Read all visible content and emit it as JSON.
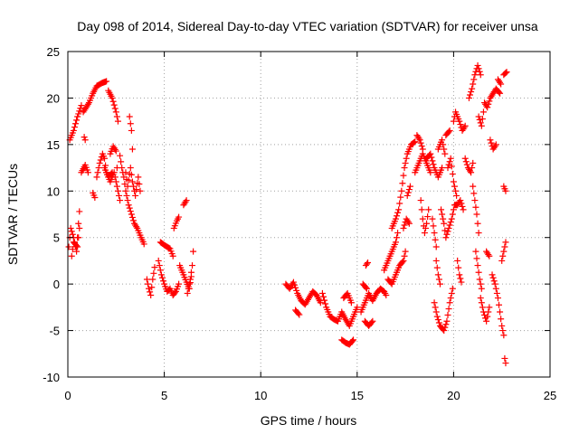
{
  "chart_data": {
    "type": "scatter",
    "title": "Day 098 of 2014, Sidereal Day-to-day VTEC variation (SDTVAR) for receiver unsa",
    "xlabel": "GPS time / hours",
    "ylabel": "SDTVAR / TECUs",
    "xlim": [
      0,
      25
    ],
    "ylim": [
      -10,
      25
    ],
    "xticks": [
      0,
      5,
      10,
      15,
      20,
      25
    ],
    "yticks": [
      -10,
      -5,
      0,
      5,
      10,
      15,
      20,
      25
    ],
    "xtick_labels": [
      "0",
      "5",
      "10",
      "15",
      "20",
      "25"
    ],
    "ytick_labels": [
      "-10",
      "-5",
      "0",
      "5",
      "10",
      "15",
      "20",
      "25"
    ],
    "grid": true,
    "marker": "+",
    "color": "#ff0000",
    "series_name": "SDTVAR",
    "tracks": [
      [
        [
          0.05,
          4.0
        ],
        [
          0.15,
          6.0
        ],
        [
          0.3,
          5.0
        ],
        [
          0.45,
          3.5
        ],
        [
          0.55,
          6.5
        ],
        [
          0.6,
          7.8
        ]
      ],
      [
        [
          0.1,
          15.5
        ],
        [
          0.3,
          16.5
        ],
        [
          0.5,
          18.0
        ],
        [
          0.7,
          19.2
        ]
      ],
      [
        [
          0.85,
          15.8
        ],
        [
          0.9,
          15.5
        ]
      ],
      [
        [
          0.7,
          12.0
        ],
        [
          0.9,
          12.8
        ],
        [
          1.05,
          12.0
        ]
      ],
      [
        [
          0.8,
          18.5
        ],
        [
          1.1,
          19.5
        ],
        [
          1.3,
          20.5
        ],
        [
          1.5,
          21.3
        ],
        [
          1.75,
          21.6
        ],
        [
          2.0,
          21.8
        ]
      ],
      [
        [
          1.3,
          9.8
        ],
        [
          1.4,
          9.3
        ]
      ],
      [
        [
          1.5,
          11.5
        ],
        [
          1.65,
          13.0
        ],
        [
          1.8,
          14.0
        ],
        [
          1.9,
          13.5
        ],
        [
          2.0,
          12.0
        ],
        [
          2.2,
          11.0
        ],
        [
          2.4,
          12.0
        ],
        [
          2.55,
          10.5
        ],
        [
          2.7,
          9.0
        ]
      ],
      [
        [
          2.1,
          20.8
        ],
        [
          2.3,
          20.0
        ],
        [
          2.5,
          18.5
        ],
        [
          2.6,
          17.5
        ]
      ],
      [
        [
          2.2,
          14.0
        ],
        [
          2.35,
          14.8
        ],
        [
          2.5,
          14.3
        ],
        [
          2.55,
          12.5
        ]
      ],
      [
        [
          2.7,
          13.8
        ],
        [
          2.8,
          12.5
        ],
        [
          2.9,
          11.5
        ],
        [
          3.0,
          10.0
        ],
        [
          3.15,
          8.5
        ],
        [
          3.3,
          7.5
        ],
        [
          3.45,
          6.5
        ],
        [
          3.6,
          6.0
        ],
        [
          3.8,
          5.0
        ],
        [
          3.95,
          4.3
        ]
      ],
      [
        [
          3.0,
          12.0
        ],
        [
          3.1,
          10.5
        ],
        [
          3.25,
          12.5
        ],
        [
          3.35,
          11.0
        ],
        [
          3.5,
          9.5
        ],
        [
          3.65,
          11.5
        ],
        [
          3.75,
          10.0
        ]
      ],
      [
        [
          3.2,
          18.0
        ],
        [
          3.3,
          16.5
        ],
        [
          3.35,
          14.5
        ]
      ],
      [
        [
          4.1,
          0.5
        ],
        [
          4.2,
          -0.5
        ],
        [
          4.3,
          -1.2
        ],
        [
          4.4,
          0.5
        ],
        [
          4.5,
          1.8
        ]
      ],
      [
        [
          4.7,
          2.5
        ],
        [
          4.85,
          1.0
        ],
        [
          5.0,
          0.0
        ],
        [
          5.15,
          -0.8
        ],
        [
          5.3,
          -0.5
        ],
        [
          5.45,
          -1.2
        ],
        [
          5.6,
          -0.8
        ],
        [
          5.75,
          0.0
        ]
      ],
      [
        [
          4.8,
          4.5
        ],
        [
          5.0,
          4.2
        ],
        [
          5.15,
          4.0
        ],
        [
          5.3,
          3.8
        ],
        [
          5.45,
          3.0
        ]
      ],
      [
        [
          5.5,
          6.0
        ],
        [
          5.65,
          6.8
        ],
        [
          5.75,
          7.2
        ]
      ],
      [
        [
          5.8,
          2.0
        ],
        [
          6.0,
          1.0
        ],
        [
          6.15,
          0.2
        ],
        [
          6.3,
          -0.5
        ],
        [
          6.4,
          0.8
        ]
      ],
      [
        [
          6.0,
          8.5
        ],
        [
          6.15,
          9.0
        ]
      ],
      [
        [
          6.2,
          -1.0
        ],
        [
          6.35,
          0.5
        ],
        [
          6.45,
          2.0
        ],
        [
          6.5,
          3.5
        ]
      ],
      [
        [
          11.3,
          0.0
        ],
        [
          11.5,
          -0.5
        ],
        [
          11.7,
          0.2
        ],
        [
          11.9,
          -1.0
        ],
        [
          12.1,
          -1.8
        ],
        [
          12.3,
          -2.2
        ],
        [
          12.5,
          -1.5
        ],
        [
          12.7,
          -0.8
        ],
        [
          12.9,
          -1.2
        ],
        [
          13.1,
          -2.0
        ]
      ],
      [
        [
          11.8,
          -2.8
        ],
        [
          12.0,
          -3.3
        ]
      ],
      [
        [
          13.2,
          -1.0
        ],
        [
          13.4,
          -2.5
        ],
        [
          13.6,
          -3.5
        ],
        [
          13.8,
          -3.8
        ],
        [
          14.0,
          -4.0
        ],
        [
          14.2,
          -3.0
        ],
        [
          14.4,
          -3.8
        ],
        [
          14.6,
          -4.5
        ],
        [
          14.8,
          -3.5
        ],
        [
          15.0,
          -2.5
        ]
      ],
      [
        [
          14.2,
          -6.0
        ],
        [
          14.4,
          -6.3
        ],
        [
          14.6,
          -6.5
        ],
        [
          14.8,
          -6.0
        ]
      ],
      [
        [
          14.3,
          -1.5
        ],
        [
          14.5,
          -1.0
        ],
        [
          14.7,
          -2.0
        ]
      ],
      [
        [
          15.2,
          -3.0
        ],
        [
          15.4,
          -2.0
        ],
        [
          15.6,
          -1.0
        ],
        [
          15.8,
          -1.8
        ],
        [
          16.0,
          -1.0
        ],
        [
          16.2,
          -0.5
        ],
        [
          16.4,
          -0.8
        ],
        [
          16.5,
          -1.2
        ]
      ],
      [
        [
          15.3,
          0.0
        ],
        [
          15.5,
          -0.5
        ]
      ],
      [
        [
          15.4,
          -4.0
        ],
        [
          15.6,
          -4.5
        ],
        [
          15.8,
          -4.0
        ]
      ],
      [
        [
          15.45,
          2.0
        ],
        [
          15.55,
          2.3
        ]
      ],
      [
        [
          16.4,
          1.5
        ],
        [
          16.6,
          2.5
        ],
        [
          16.8,
          3.5
        ],
        [
          17.0,
          4.5
        ],
        [
          17.1,
          5.5
        ]
      ],
      [
        [
          16.6,
          0.5
        ],
        [
          16.8,
          0.0
        ],
        [
          17.0,
          1.0
        ],
        [
          17.2,
          2.0
        ],
        [
          17.4,
          2.5
        ],
        [
          17.5,
          3.5
        ]
      ],
      [
        [
          16.8,
          6.0
        ],
        [
          17.0,
          7.0
        ],
        [
          17.15,
          8.0
        ],
        [
          17.3,
          10.0
        ],
        [
          17.45,
          12.5
        ],
        [
          17.6,
          14.0
        ],
        [
          17.8,
          15.0
        ],
        [
          18.0,
          15.3
        ]
      ],
      [
        [
          17.4,
          6.0
        ],
        [
          17.55,
          7.0
        ],
        [
          17.7,
          6.5
        ]
      ],
      [
        [
          17.6,
          9.5
        ],
        [
          17.75,
          10.5
        ]
      ],
      [
        [
          18.0,
          12.0
        ],
        [
          18.2,
          13.0
        ],
        [
          18.4,
          14.0
        ],
        [
          18.6,
          13.0
        ],
        [
          18.8,
          12.0
        ]
      ],
      [
        [
          18.1,
          16.0
        ],
        [
          18.25,
          15.5
        ],
        [
          18.4,
          14.5
        ]
      ],
      [
        [
          18.3,
          9.0
        ],
        [
          18.4,
          7.0
        ],
        [
          18.5,
          5.5
        ],
        [
          18.6,
          6.5
        ],
        [
          18.7,
          8.0
        ]
      ],
      [
        [
          18.6,
          13.5
        ],
        [
          18.8,
          14.0
        ],
        [
          19.0,
          12.5
        ],
        [
          19.2,
          11.5
        ],
        [
          19.4,
          12.5
        ]
      ],
      [
        [
          18.9,
          7.0
        ],
        [
          19.0,
          5.5
        ],
        [
          19.1,
          4.0
        ]
      ],
      [
        [
          19.0,
          -2.0
        ],
        [
          19.15,
          -3.5
        ],
        [
          19.3,
          -4.5
        ],
        [
          19.5,
          -5.0
        ],
        [
          19.65,
          -4.0
        ],
        [
          19.8,
          -2.0
        ],
        [
          19.95,
          -0.5
        ]
      ],
      [
        [
          19.1,
          2.5
        ],
        [
          19.2,
          1.0
        ],
        [
          19.3,
          0.0
        ]
      ],
      [
        [
          19.2,
          14.5
        ],
        [
          19.4,
          15.5
        ],
        [
          19.55,
          14.0
        ]
      ],
      [
        [
          19.35,
          8.0
        ],
        [
          19.5,
          6.5
        ],
        [
          19.6,
          5.0
        ],
        [
          19.75,
          6.0
        ],
        [
          19.9,
          7.0
        ],
        [
          20.05,
          8.5
        ],
        [
          20.2,
          8.5
        ],
        [
          20.35,
          9.0
        ],
        [
          20.5,
          8.0
        ]
      ],
      [
        [
          19.7,
          12.5
        ],
        [
          19.85,
          13.5
        ],
        [
          20.0,
          11.0
        ],
        [
          20.15,
          9.5
        ]
      ],
      [
        [
          19.6,
          16.0
        ],
        [
          19.8,
          16.5
        ]
      ],
      [
        [
          20.0,
          17.5
        ],
        [
          20.1,
          18.5
        ],
        [
          20.3,
          17.5
        ],
        [
          20.45,
          16.5
        ],
        [
          20.6,
          17.0
        ]
      ],
      [
        [
          20.2,
          2.5
        ],
        [
          20.3,
          1.0
        ],
        [
          20.4,
          0.2
        ]
      ],
      [
        [
          20.6,
          13.5
        ],
        [
          20.75,
          12.5
        ],
        [
          20.9,
          12.0
        ],
        [
          21.0,
          13.0
        ]
      ],
      [
        [
          20.8,
          20.0
        ],
        [
          20.95,
          21.0
        ],
        [
          21.1,
          22.5
        ],
        [
          21.25,
          23.5
        ],
        [
          21.4,
          22.5
        ]
      ],
      [
        [
          21.0,
          10.5
        ],
        [
          21.1,
          9.0
        ],
        [
          21.2,
          7.5
        ],
        [
          21.3,
          5.5
        ]
      ],
      [
        [
          21.15,
          3.5
        ],
        [
          21.25,
          2.0
        ],
        [
          21.35,
          0.5
        ],
        [
          21.45,
          -0.5
        ]
      ],
      [
        [
          21.3,
          18.0
        ],
        [
          21.45,
          17.0
        ],
        [
          21.55,
          18.5
        ]
      ],
      [
        [
          21.4,
          -1.5
        ],
        [
          21.55,
          -3.0
        ],
        [
          21.7,
          -4.0
        ],
        [
          21.85,
          -2.5
        ]
      ],
      [
        [
          21.6,
          19.5
        ],
        [
          21.75,
          19.0
        ],
        [
          21.9,
          20.0
        ],
        [
          22.05,
          20.5
        ],
        [
          22.2,
          21.0
        ],
        [
          22.4,
          20.5
        ]
      ],
      [
        [
          21.7,
          3.5
        ],
        [
          21.85,
          3.0
        ]
      ],
      [
        [
          21.9,
          15.5
        ],
        [
          22.05,
          14.5
        ],
        [
          22.2,
          15.0
        ]
      ],
      [
        [
          22.0,
          1.0
        ],
        [
          22.15,
          0.0
        ],
        [
          22.3,
          -1.5
        ],
        [
          22.4,
          -3.0
        ],
        [
          22.5,
          -4.5
        ],
        [
          22.6,
          -5.5
        ]
      ],
      [
        [
          22.3,
          22.0
        ],
        [
          22.45,
          21.5
        ]
      ],
      [
        [
          22.5,
          2.5
        ],
        [
          22.6,
          3.5
        ],
        [
          22.7,
          4.5
        ]
      ],
      [
        [
          22.6,
          22.5
        ],
        [
          22.75,
          22.8
        ]
      ],
      [
        [
          22.6,
          10.5
        ],
        [
          22.7,
          10.0
        ]
      ],
      [
        [
          22.65,
          -8.0
        ],
        [
          22.7,
          -8.5
        ]
      ],
      [
        [
          0.2,
          3.0
        ],
        [
          0.3,
          4.5
        ],
        [
          0.5,
          4.0
        ],
        [
          0.6,
          6.0
        ]
      ],
      [
        [
          1.9,
          12.5
        ],
        [
          2.1,
          11.5
        ],
        [
          2.3,
          12.0
        ]
      ]
    ]
  }
}
